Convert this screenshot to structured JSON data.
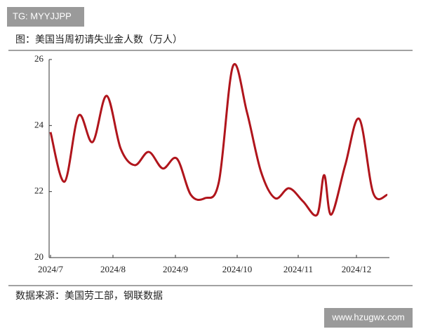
{
  "chart_data": {
    "type": "line",
    "title": "图：美国当周初请失业金人数（万人）",
    "source": "数据来源：美国劳工部，钢联数据",
    "watermark_top": "TG: MYYJJPP",
    "watermark_bottom": "www.hzugwx.com",
    "x": [
      0,
      1,
      2,
      3,
      4,
      5,
      6,
      7,
      8,
      9,
      10,
      11,
      12,
      13,
      14,
      15,
      16,
      17,
      18,
      19,
      19.5,
      20,
      21,
      22,
      23,
      24
    ],
    "series": [
      {
        "name": "当周初请失业金人数",
        "color": "#b0151c",
        "values": [
          23.8,
          22.3,
          24.3,
          23.5,
          24.9,
          23.3,
          22.8,
          23.2,
          22.7,
          23.0,
          21.9,
          21.8,
          22.3,
          25.8,
          24.4,
          22.6,
          21.8,
          22.1,
          21.7,
          21.3,
          22.5,
          21.3,
          22.8,
          24.2,
          21.95,
          21.9
        ]
      }
    ],
    "xlim": [
      -0.1,
      24.15
    ],
    "xticks": [
      {
        "value": 0,
        "label": "2024/7"
      },
      {
        "value": 4.45,
        "label": "2024/8"
      },
      {
        "value": 8.9,
        "label": "2024/9"
      },
      {
        "value": 13.3,
        "label": "2024/10"
      },
      {
        "value": 17.65,
        "label": "2024/11"
      },
      {
        "value": 21.8,
        "label": "2024/12"
      }
    ],
    "ylim": [
      20,
      26
    ],
    "yticks": [
      20,
      22,
      24,
      26
    ]
  }
}
